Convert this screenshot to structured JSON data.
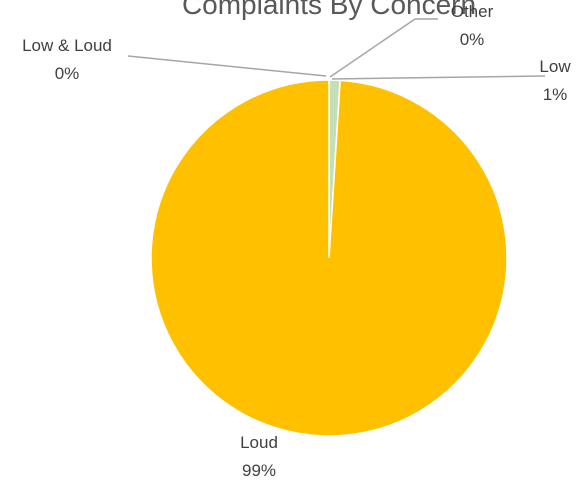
{
  "chart_data": {
    "type": "pie",
    "title": "Complaints By Concern",
    "slices": [
      {
        "label": "Low",
        "value": 1,
        "percent_label": "1%",
        "color": "#C5E0B4"
      },
      {
        "label": "Loud",
        "value": 99,
        "percent_label": "99%",
        "color": "#FFC000"
      },
      {
        "label": "Low & Loud",
        "value": 0,
        "percent_label": "0%",
        "color": "#A9D18E"
      },
      {
        "label": "Other",
        "value": 0,
        "percent_label": "0%",
        "color": "#70AD47"
      }
    ],
    "leader_line_color": "#A6A6A6",
    "label_color": "#404040",
    "title_color": "#595959"
  }
}
